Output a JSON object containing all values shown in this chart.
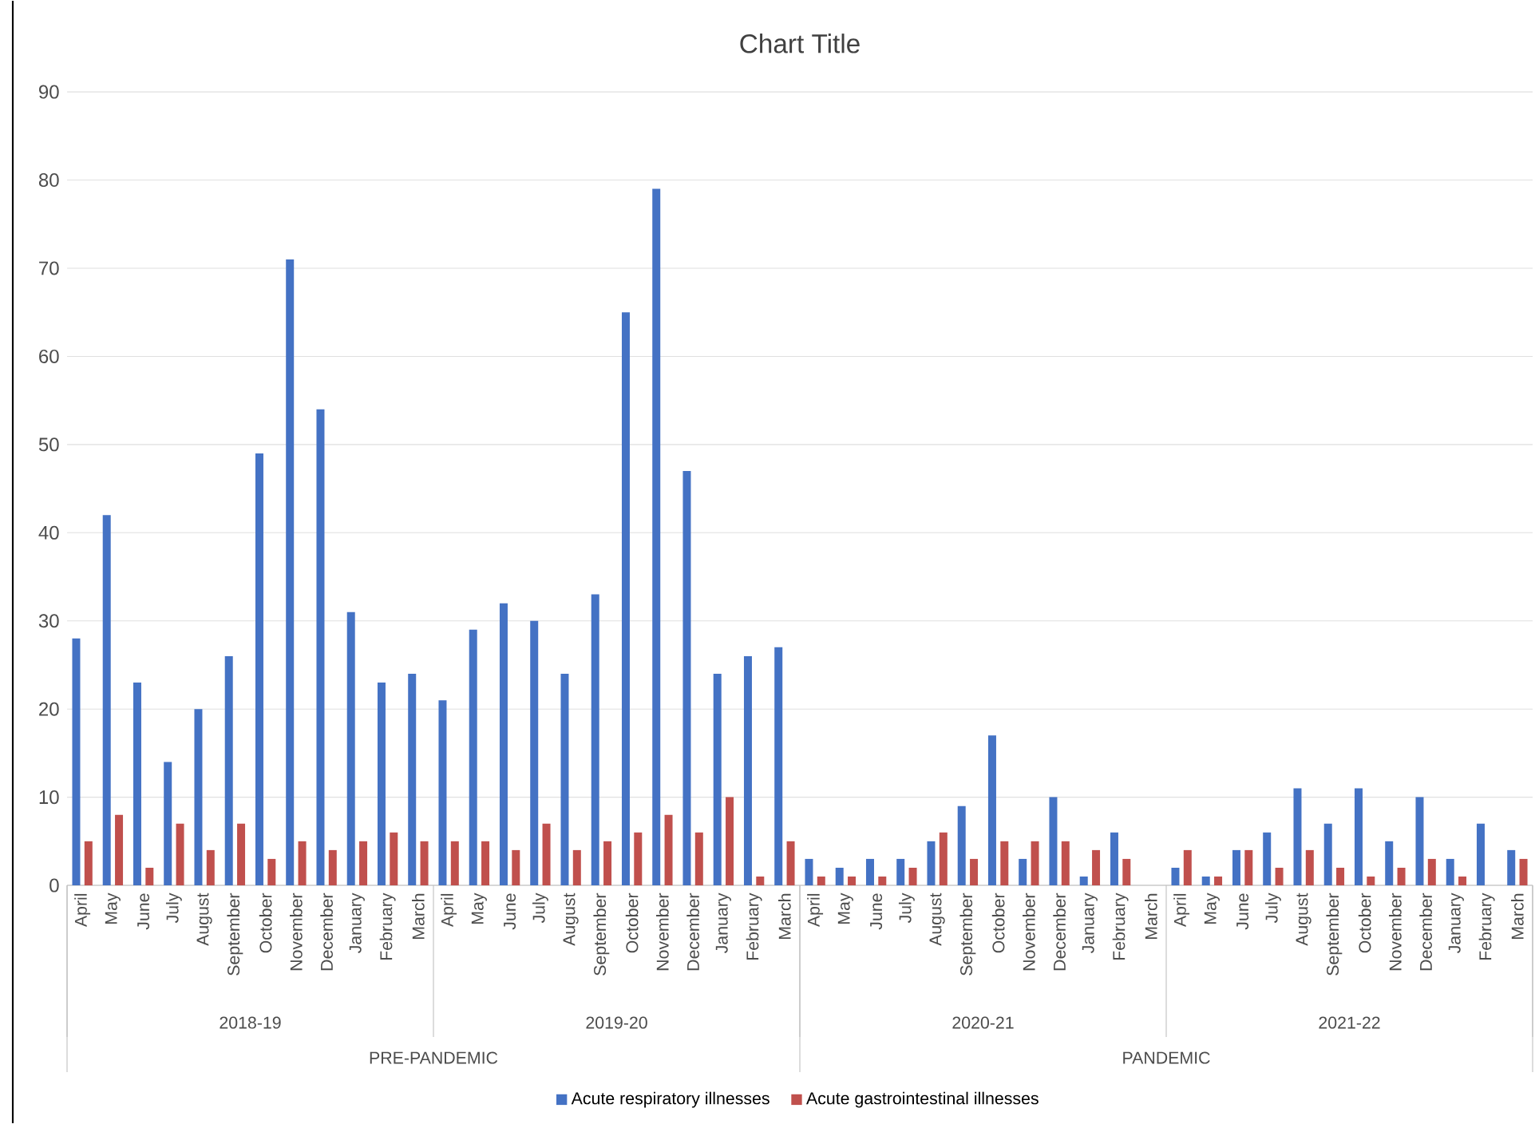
{
  "chart_data": {
    "type": "bar",
    "title": "Chart Title",
    "categories": [
      "April",
      "May",
      "June",
      "July",
      "August",
      "September",
      "October",
      "November",
      "December",
      "January",
      "February",
      "March",
      "April",
      "May",
      "June",
      "July",
      "August",
      "September",
      "October",
      "November",
      "December",
      "January",
      "February",
      "March",
      "April",
      "May",
      "June",
      "July",
      "August",
      "September",
      "October",
      "November",
      "December",
      "January",
      "February",
      "March",
      "April",
      "May",
      "June",
      "July",
      "August",
      "September",
      "October",
      "November",
      "December",
      "January",
      "February",
      "March"
    ],
    "series": [
      {
        "name": "Acute respiratory illnesses",
        "color": "#4472c4",
        "values": [
          28,
          42,
          23,
          14,
          20,
          26,
          49,
          71,
          54,
          31,
          23,
          24,
          21,
          29,
          32,
          30,
          24,
          33,
          65,
          79,
          47,
          24,
          26,
          27,
          3,
          2,
          3,
          3,
          5,
          9,
          17,
          3,
          10,
          1,
          6,
          0,
          2,
          1,
          4,
          6,
          11,
          7,
          11,
          5,
          10,
          3,
          7,
          4
        ]
      },
      {
        "name": "Acute gastrointestinal illnesses",
        "color": "#c0504d",
        "values": [
          5,
          8,
          2,
          7,
          4,
          7,
          3,
          5,
          4,
          5,
          6,
          5,
          5,
          5,
          4,
          7,
          4,
          5,
          6,
          8,
          6,
          10,
          1,
          5,
          1,
          1,
          1,
          2,
          6,
          3,
          5,
          5,
          5,
          4,
          3,
          0,
          4,
          1,
          4,
          2,
          4,
          2,
          1,
          2,
          3,
          1,
          0,
          3
        ]
      }
    ],
    "annotations": [
      "2018-19",
      "2019-20",
      "2020-21",
      "2021-22",
      "PRE-PANDEMIC",
      "PANDEMIC"
    ],
    "ylim": [
      0,
      90
    ],
    "yticks": [
      0,
      10,
      20,
      30,
      40,
      50,
      60,
      70,
      80,
      90
    ],
    "grid": "y",
    "legend": "bottom"
  }
}
